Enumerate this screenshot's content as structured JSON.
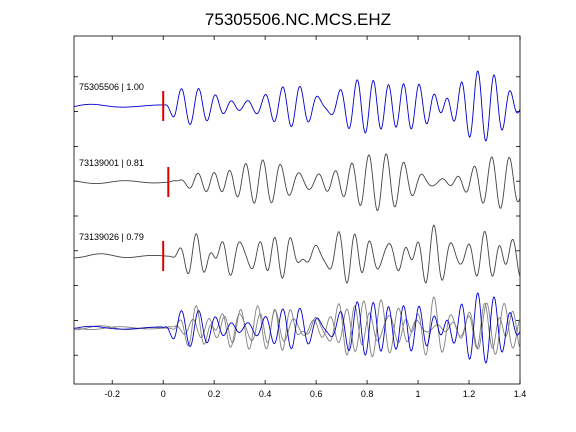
{
  "chart_data": {
    "type": "line",
    "title": "75305506.NC.MCS.EHZ",
    "xlabel": "",
    "ylabel": "",
    "xlim": [
      -0.35,
      1.4
    ],
    "x_ticks": [
      -0.2,
      0,
      0.2,
      0.4,
      0.6,
      0.8,
      1,
      1.2,
      1.4
    ],
    "x_tick_labels": [
      "-0.2",
      "0",
      "0.2",
      "0.4",
      "0.6",
      "0.8",
      "1",
      "1.2",
      "1.4"
    ],
    "grid": false,
    "pick_time": 0,
    "traces": [
      {
        "label": "75305506 | 1.00",
        "color": "#0000cc",
        "pick_time": 0,
        "seed": 1
      },
      {
        "label": "73139001 | 0.81",
        "color": "#444444",
        "pick_time": 0.02,
        "seed": 2
      },
      {
        "label": "73139026 | 0.79",
        "color": "#444444",
        "pick_time": 0.0,
        "seed": 3
      }
    ],
    "stack": {
      "label": "",
      "overlay_colors": [
        "#0000cc",
        "#808080",
        "#808080"
      ]
    }
  },
  "colors": {
    "pick_marker": "#dd0000",
    "axes": "#000000"
  }
}
